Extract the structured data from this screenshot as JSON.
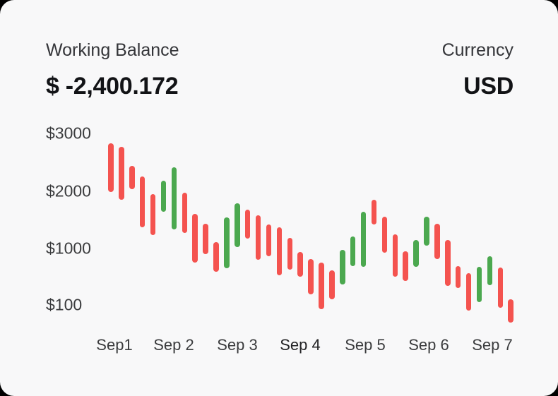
{
  "header": {
    "balance_label": "Working Balance",
    "balance_value": "$ -2,400.172",
    "currency_label": "Currency",
    "currency_value": "USD"
  },
  "colors": {
    "card_bg": "#F8F8F9",
    "label_text": "#343539",
    "value_text": "#121316",
    "axis_text": "#3A3B3D",
    "axis_text_emphasized": "#232325",
    "up": "#4BA84F",
    "down": "#F4534F"
  },
  "chart_data": {
    "type": "candlestick",
    "title": "",
    "xlabel": "",
    "ylabel": "",
    "grid": false,
    "legend": "none",
    "ylim": [
      -200,
      3000
    ],
    "y_ticks": [
      {
        "label": "$3000",
        "value": 3000
      },
      {
        "label": "$2000",
        "value": 2000
      },
      {
        "label": "$1000",
        "value": 1000
      },
      {
        "label": "$100",
        "value": 100
      }
    ],
    "x_categories": [
      "Sep1",
      "Sep 2",
      "Sep 3",
      "Sep 4",
      "Sep 5",
      "Sep 6",
      "Sep 7"
    ],
    "x_emphasized": "Sep 4",
    "bars_per_day": 6,
    "bars": [
      {
        "high": 2830,
        "low": 1980,
        "trend": "down"
      },
      {
        "high": 2770,
        "low": 1850,
        "trend": "down"
      },
      {
        "high": 2440,
        "low": 2030,
        "trend": "down"
      },
      {
        "high": 2250,
        "low": 1370,
        "trend": "down"
      },
      {
        "high": 1940,
        "low": 1230,
        "trend": "down"
      },
      {
        "high": 2180,
        "low": 1640,
        "trend": "up"
      },
      {
        "high": 2410,
        "low": 1330,
        "trend": "up"
      },
      {
        "high": 1970,
        "low": 1270,
        "trend": "down"
      },
      {
        "high": 1600,
        "low": 780,
        "trend": "down"
      },
      {
        "high": 1430,
        "low": 910,
        "trend": "down"
      },
      {
        "high": 1110,
        "low": 630,
        "trend": "down"
      },
      {
        "high": 1540,
        "low": 690,
        "trend": "up"
      },
      {
        "high": 1790,
        "low": 1020,
        "trend": "up"
      },
      {
        "high": 1670,
        "low": 1170,
        "trend": "down"
      },
      {
        "high": 1580,
        "low": 820,
        "trend": "down"
      },
      {
        "high": 1420,
        "low": 880,
        "trend": "down"
      },
      {
        "high": 1370,
        "low": 570,
        "trend": "down"
      },
      {
        "high": 1180,
        "low": 660,
        "trend": "down"
      },
      {
        "high": 940,
        "low": 550,
        "trend": "down"
      },
      {
        "high": 830,
        "low": 270,
        "trend": "down"
      },
      {
        "high": 780,
        "low": 30,
        "trend": "down"
      },
      {
        "high": 650,
        "low": 190,
        "trend": "down"
      },
      {
        "high": 980,
        "low": 430,
        "trend": "up"
      },
      {
        "high": 1210,
        "low": 720,
        "trend": "up"
      },
      {
        "high": 1640,
        "low": 710,
        "trend": "up"
      },
      {
        "high": 1850,
        "low": 1420,
        "trend": "down"
      },
      {
        "high": 1550,
        "low": 930,
        "trend": "down"
      },
      {
        "high": 1250,
        "low": 550,
        "trend": "down"
      },
      {
        "high": 960,
        "low": 480,
        "trend": "down"
      },
      {
        "high": 1150,
        "low": 710,
        "trend": "up"
      },
      {
        "high": 1550,
        "low": 1050,
        "trend": "up"
      },
      {
        "high": 1430,
        "low": 830,
        "trend": "down"
      },
      {
        "high": 1150,
        "low": 400,
        "trend": "down"
      },
      {
        "high": 720,
        "low": 370,
        "trend": "down"
      },
      {
        "high": 610,
        "low": 10,
        "trend": "down"
      },
      {
        "high": 710,
        "low": 150,
        "trend": "up"
      },
      {
        "high": 880,
        "low": 420,
        "trend": "up"
      },
      {
        "high": 700,
        "low": 60,
        "trend": "down"
      },
      {
        "high": 190,
        "low": -180,
        "trend": "down"
      }
    ]
  }
}
